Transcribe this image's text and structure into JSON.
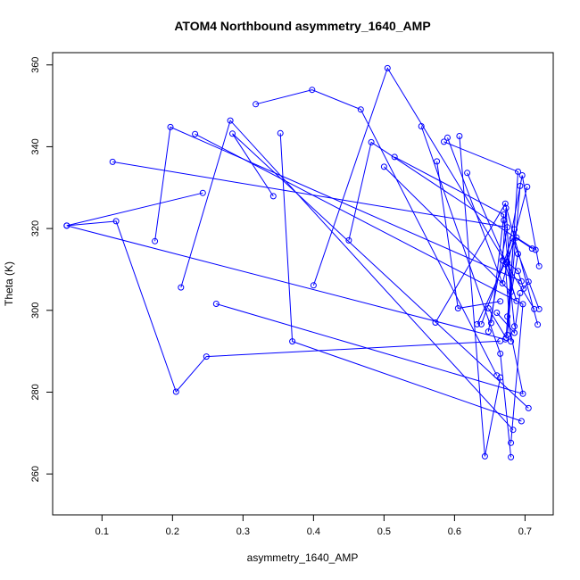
{
  "chart_data": {
    "type": "line",
    "title": "ATOM4 Northbound asymmetry_1640_AMP",
    "xlabel": "asymmetry_1640_AMP",
    "ylabel": "Theta (K)",
    "xlim": [
      0.03,
      0.74
    ],
    "ylim": [
      250,
      363
    ],
    "x_ticks": [
      0.1,
      0.2,
      0.3,
      0.4,
      0.5,
      0.6,
      0.7
    ],
    "x_tick_labels": [
      "0.1",
      "0.2",
      "0.3",
      "0.4",
      "0.5",
      "0.6",
      "0.7"
    ],
    "y_ticks": [
      260,
      280,
      300,
      320,
      340,
      360
    ],
    "y_tick_labels": [
      "260",
      "280",
      "300",
      "320",
      "340",
      "360"
    ],
    "grid": false,
    "colors": {
      "series": "#0000ff",
      "axes": "#000000",
      "background": "#ffffff"
    },
    "series": [
      {
        "x": [
          0.05,
          0.12,
          0.205,
          0.248,
          0.665
        ],
        "y": [
          320.7,
          321.8,
          280.1,
          288.7,
          292.5
        ]
      },
      {
        "x": [
          0.115,
          0.675,
          0.648
        ],
        "y": [
          336.3,
          320.3,
          294.8
        ]
      },
      {
        "x": [
          0.175,
          0.197,
          0.695
        ],
        "y": [
          316.9,
          344.8,
          307.1
        ]
      },
      {
        "x": [
          0.212,
          0.282,
          0.683
        ],
        "y": [
          305.6,
          346.4,
          270.8
        ]
      },
      {
        "x": [
          0.232,
          0.697,
          0.68
        ],
        "y": [
          343.1,
          301.5,
          267.6
        ]
      },
      {
        "x": [
          0.243,
          0.05,
          0.672
        ],
        "y": [
          328.7,
          320.7,
          292.9
        ]
      },
      {
        "x": [
          0.262,
          0.697,
          0.675,
          0.69
        ],
        "y": [
          301.6,
          279.6,
          298.5,
          313.8
        ]
      },
      {
        "x": [
          0.318,
          0.398,
          0.467,
          0.66
        ],
        "y": [
          350.4,
          353.9,
          349.1,
          284.1
        ]
      },
      {
        "x": [
          0.343,
          0.285,
          0.705
        ],
        "y": [
          327.9,
          343.2,
          276.1
        ]
      },
      {
        "x": [
          0.353,
          0.37,
          0.695
        ],
        "y": [
          343.3,
          292.4,
          272.9
        ]
      },
      {
        "x": [
          0.4,
          0.505,
          0.713
        ],
        "y": [
          306.1,
          359.2,
          300.3
        ]
      },
      {
        "x": [
          0.45,
          0.482,
          0.71
        ],
        "y": [
          317.1,
          341.1,
          315.1
        ]
      },
      {
        "x": [
          0.5,
          0.68,
          0.673,
          0.668
        ],
        "y": [
          335.1,
          304.5,
          325.0,
          312.2
        ]
      },
      {
        "x": [
          0.515,
          0.67,
          0.652
        ],
        "y": [
          337.5,
          323.4,
          296.9
        ]
      },
      {
        "x": [
          0.553,
          0.665,
          0.68
        ],
        "y": [
          345.0,
          289.4,
          264.1
        ]
      },
      {
        "x": [
          0.575,
          0.605,
          0.665
        ],
        "y": [
          336.4,
          300.5,
          302.2
        ]
      },
      {
        "x": [
          0.573,
          0.672,
          0.718
        ],
        "y": [
          297.0,
          326.1,
          296.5
        ]
      },
      {
        "x": [
          0.585,
          0.69,
          0.675,
          0.693
        ],
        "y": [
          341.2,
          333.9,
          294.0,
          330.4
        ]
      },
      {
        "x": [
          0.59,
          0.668,
          0.703
        ],
        "y": [
          342.2,
          306.6,
          330.2
        ]
      },
      {
        "x": [
          0.607,
          0.643,
          0.665
        ],
        "y": [
          342.6,
          264.3,
          283.6
        ]
      },
      {
        "x": [
          0.618,
          0.673,
          0.696,
          0.72
        ],
        "y": [
          333.6,
          311.8,
          333.0,
          310.8
        ]
      },
      {
        "x": [
          0.632,
          0.688,
          0.715
        ],
        "y": [
          296.6,
          317.8,
          314.8
        ]
      },
      {
        "x": [
          0.638,
          0.682,
          0.72
        ],
        "y": [
          296.6,
          317.6,
          300.3
        ]
      },
      {
        "x": [
          0.648,
          0.673,
          0.685
        ],
        "y": [
          300.5,
          293.3,
          319.8
        ]
      },
      {
        "x": [
          0.66,
          0.685,
          0.693
        ],
        "y": [
          299.4,
          294.5,
          304.2
        ]
      },
      {
        "x": [
          0.68,
          0.672,
          0.688
        ],
        "y": [
          292.4,
          311.3,
          302.3
        ]
      },
      {
        "x": [
          0.675,
          0.69,
          0.698,
          0.705
        ],
        "y": [
          311.7,
          309.6,
          305.3,
          307.0
        ]
      },
      {
        "x": [
          0.67,
          0.685
        ],
        "y": [
          322.0,
          296.1
        ]
      }
    ]
  }
}
